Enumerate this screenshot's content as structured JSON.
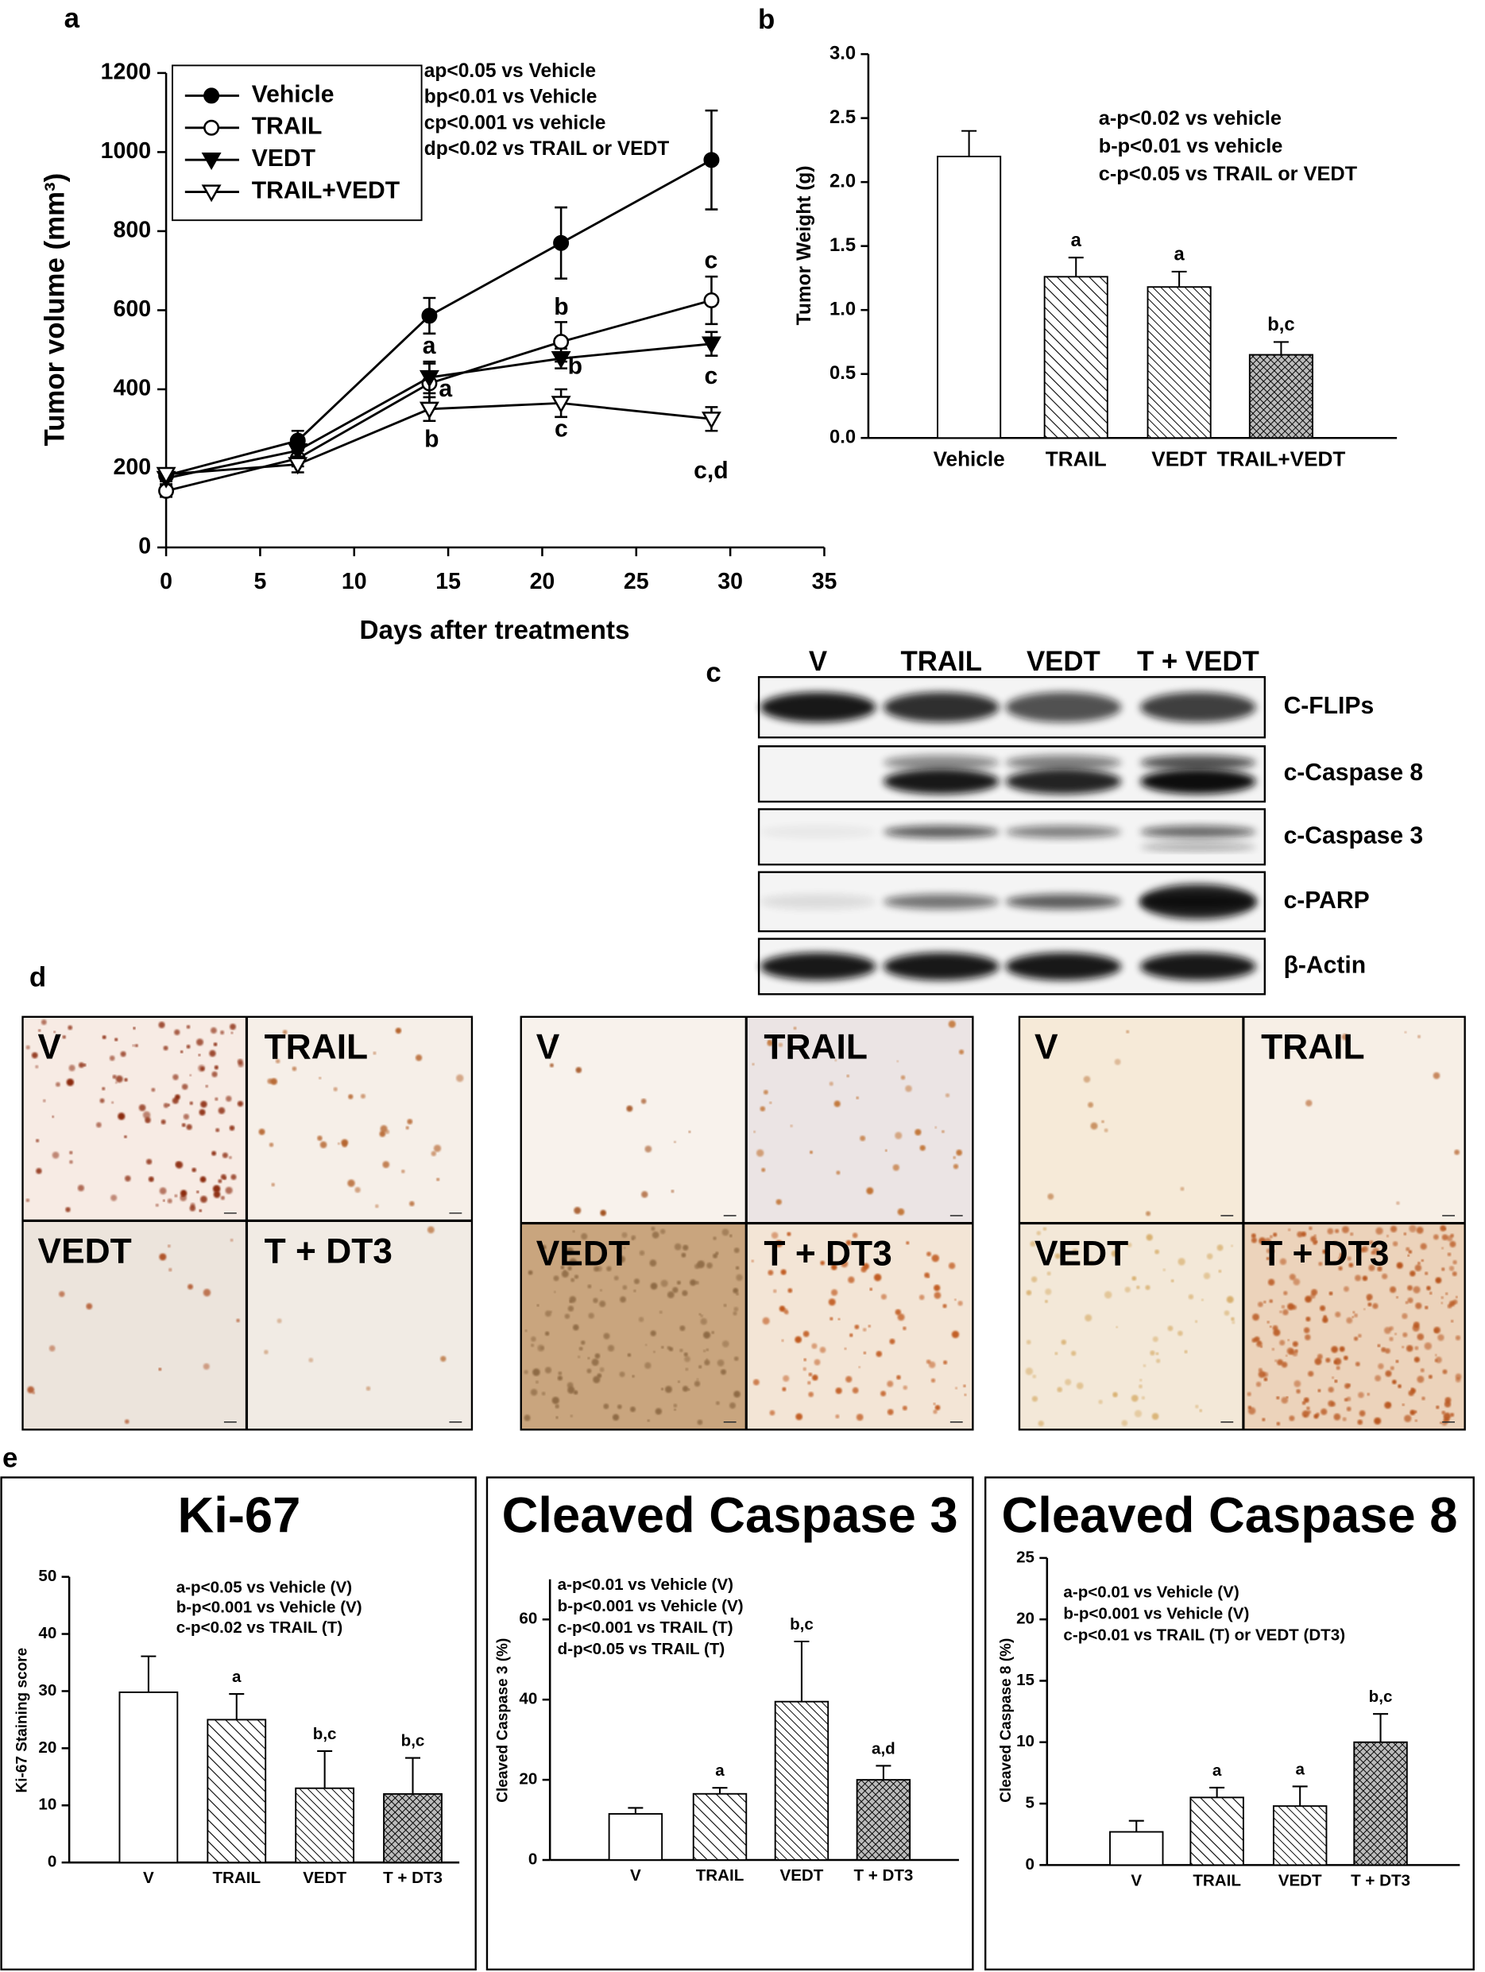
{
  "chart_data": [
    {
      "type": "line",
      "panel": "a",
      "xlabel": "Days after treatments",
      "ylabel": "Tumor volume (mm³)",
      "x": [
        0,
        7,
        14,
        21,
        29
      ],
      "xlim": [
        0,
        35
      ],
      "xticks": [
        0,
        5,
        10,
        15,
        20,
        25,
        30,
        35
      ],
      "ylim": [
        0,
        1200
      ],
      "yticks": [
        0,
        200,
        400,
        600,
        800,
        1000,
        1200
      ],
      "legend": "upper left",
      "series": [
        {
          "name": "Vehicle",
          "color": "#000000",
          "marker": "filled-circle",
          "values": [
            182,
            270,
            586,
            770,
            980
          ],
          "errors": [
            15,
            25,
            45,
            90,
            125
          ]
        },
        {
          "name": "TRAIL",
          "color": "#000000",
          "marker": "open-circle",
          "values": [
            143,
            225,
            415,
            520,
            625
          ],
          "errors": [
            15,
            20,
            50,
            50,
            60
          ]
        },
        {
          "name": "VEDT",
          "color": "#000000",
          "marker": "filled-triangle-down",
          "values": [
            175,
            245,
            430,
            478,
            515
          ],
          "errors": [
            15,
            20,
            40,
            25,
            30
          ]
        },
        {
          "name": "TRAIL+VEDT",
          "color": "#000000",
          "marker": "open-triangle-down",
          "values": [
            185,
            210,
            350,
            365,
            325
          ],
          "errors": [
            15,
            20,
            30,
            35,
            30
          ]
        }
      ],
      "notes": [
        "ap<0.05 vs Vehicle",
        "bp<0.01 vs Vehicle",
        "cp<0.001 vs vehicle",
        "dp<0.02 vs TRAIL or VEDT"
      ],
      "annotations": [
        "a",
        "a",
        "b",
        "b",
        "b",
        "c",
        "c",
        "c",
        "c,d"
      ]
    },
    {
      "type": "bar",
      "panel": "b",
      "ylabel": "Tumor Weight (g)",
      "categories": [
        "Vehicle",
        "TRAIL",
        "VEDT",
        "TRAIL+VEDT"
      ],
      "values": [
        2.2,
        1.26,
        1.18,
        0.65
      ],
      "errors": [
        0.2,
        0.15,
        0.12,
        0.1
      ],
      "bar_labels": [
        null,
        "a",
        "a",
        "b,c"
      ],
      "fills": [
        "white",
        "hatch",
        "hatch-dense",
        "crosshatch"
      ],
      "color": "#000000",
      "ylim": [
        0,
        3
      ],
      "yticks": [
        {
          "value": 0,
          "label": "0.0"
        },
        {
          "value": 0.5,
          "label": "0.5"
        },
        {
          "value": 1,
          "label": "1.0"
        },
        {
          "value": 1.5,
          "label": "1.5"
        },
        {
          "value": 2,
          "label": "2.0"
        },
        {
          "value": 2.5,
          "label": "2.5"
        },
        {
          "value": 3,
          "label": "3.0"
        }
      ],
      "notes": [
        "a-p<0.02 vs vehicle",
        "b-p<0.01 vs vehicle",
        "c-p<0.05 vs TRAIL or VEDT"
      ]
    },
    {
      "type": "bar",
      "panel": "e",
      "title": "Ki-67",
      "ylabel": "Ki-67 Staining score",
      "categories": [
        "V",
        "TRAIL",
        "VEDT",
        "T + DT3"
      ],
      "values": [
        29.8,
        25,
        13,
        12
      ],
      "errors": [
        6.3,
        4.5,
        6.5,
        6.3
      ],
      "bar_labels": [
        null,
        "a",
        "b,c",
        "b,c"
      ],
      "fills": [
        "white",
        "hatch",
        "hatch-dense",
        "crosshatch"
      ],
      "color": "#000000",
      "ylim": [
        0,
        50
      ],
      "yticks": [
        0,
        10,
        20,
        30,
        40,
        50
      ],
      "notes": [
        "a-p<0.05 vs Vehicle (V)",
        "b-p<0.001 vs Vehicle (V)",
        "c-p<0.02 vs TRAIL (T)"
      ]
    },
    {
      "type": "bar",
      "title": "Cleaved Caspase 3",
      "ylabel": "Cleaved Caspase 3  (%)",
      "categories": [
        "V",
        "TRAIL",
        "VEDT",
        "T + DT3"
      ],
      "values": [
        11.5,
        16.5,
        39.5,
        20
      ],
      "errors": [
        1.5,
        1.5,
        15,
        3.5
      ],
      "bar_labels": [
        null,
        "a",
        "b,c",
        "a,d"
      ],
      "fills": [
        "white",
        "hatch",
        "hatch-dense",
        "crosshatch"
      ],
      "color": "#000000",
      "ylim": [
        0,
        70
      ],
      "yticks": [
        0,
        20,
        40,
        60
      ],
      "notes": [
        "a-p<0.01 vs Vehicle (V)",
        "b-p<0.001 vs Vehicle (V)",
        "c-p<0.001 vs TRAIL (T)",
        "d-p<0.05 vs TRAIL (T)"
      ]
    },
    {
      "type": "bar",
      "title": "Cleaved Caspase 8",
      "ylabel": "Cleaved Caspase 8  (%)",
      "categories": [
        "V",
        "TRAIL",
        "VEDT",
        "T + DT3"
      ],
      "values": [
        2.7,
        5.5,
        4.8,
        10
      ],
      "errors": [
        0.9,
        0.8,
        1.6,
        2.3
      ],
      "bar_labels": [
        null,
        "a",
        "a",
        "b,c"
      ],
      "fills": [
        "white",
        "hatch",
        "hatch-dense",
        "crosshatch"
      ],
      "color": "#000000",
      "ylim": [
        0,
        25
      ],
      "yticks": [
        0,
        5,
        10,
        15,
        20,
        25
      ],
      "notes": [
        "a-p<0.01 vs Vehicle (V)",
        "b-p<0.001 vs Vehicle (V)",
        "c-p<0.01 vs TRAIL (T) or VEDT (DT3)"
      ]
    }
  ],
  "blot": {
    "panel": "c",
    "lanes": [
      "V",
      "TRAIL",
      "VEDT",
      "T + VEDT"
    ],
    "proteins": [
      "C-FLIPs",
      "c-Caspase 8",
      "c-Caspase 3",
      "c-PARP",
      "β-Actin"
    ]
  },
  "micrographs": {
    "panel": "d",
    "groups": [
      [
        "V",
        "TRAIL",
        "VEDT",
        "T + DT3"
      ],
      [
        "V",
        "TRAIL",
        "VEDT",
        "T + DT3"
      ],
      [
        "V",
        "TRAIL",
        "VEDT",
        "T + DT3"
      ]
    ]
  }
}
